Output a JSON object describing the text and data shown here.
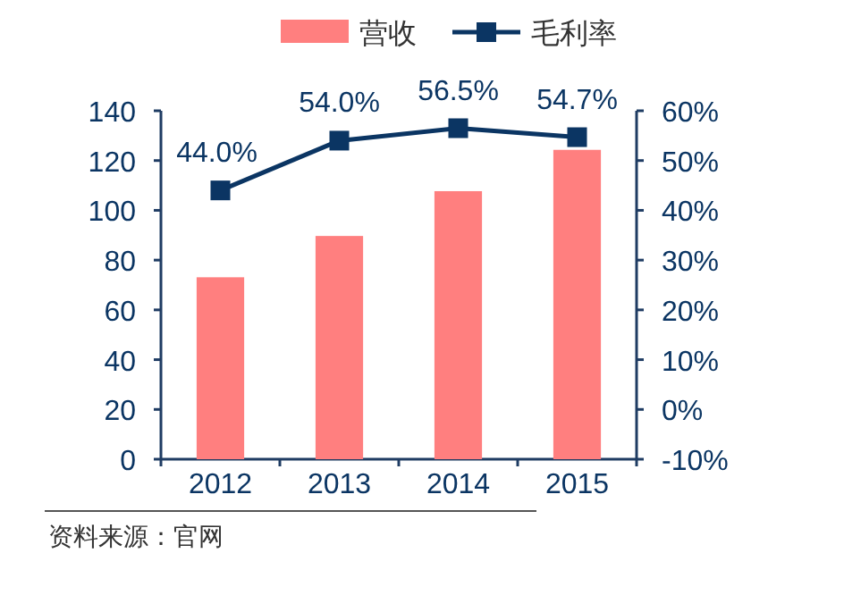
{
  "chart_data": {
    "type": "bar",
    "categories": [
      "2012",
      "2013",
      "2014",
      "2015"
    ],
    "series": [
      {
        "name": "营收",
        "color": "#ff7f7f",
        "values": [
          73.1,
          89.7,
          107.7,
          124.3
        ]
      },
      {
        "name": "毛利率",
        "type": "line",
        "axis": "y2",
        "color": "#0b3563",
        "values": [
          44.0,
          54.0,
          56.5,
          54.7
        ],
        "value_labels": [
          "44.0%",
          "54.0%",
          "56.5%",
          "54.7%"
        ]
      }
    ],
    "ylim": [
      0,
      140
    ],
    "yticks": [
      0,
      20,
      40,
      60,
      80,
      100,
      120,
      140
    ],
    "y2lim": [
      -10,
      60
    ],
    "y2ticks": [
      {
        "value": -10,
        "label": "-10%"
      },
      {
        "value": 0,
        "label": "0%"
      },
      {
        "value": 10,
        "label": "10%"
      },
      {
        "value": 20,
        "label": "20%"
      },
      {
        "value": 30,
        "label": "30%"
      },
      {
        "value": 40,
        "label": "40%"
      },
      {
        "value": 50,
        "label": "50%"
      },
      {
        "value": 60,
        "label": "60%"
      }
    ],
    "grid": false,
    "legend": "top",
    "marker": "square",
    "annotations": [
      "资料来源：官网"
    ]
  }
}
